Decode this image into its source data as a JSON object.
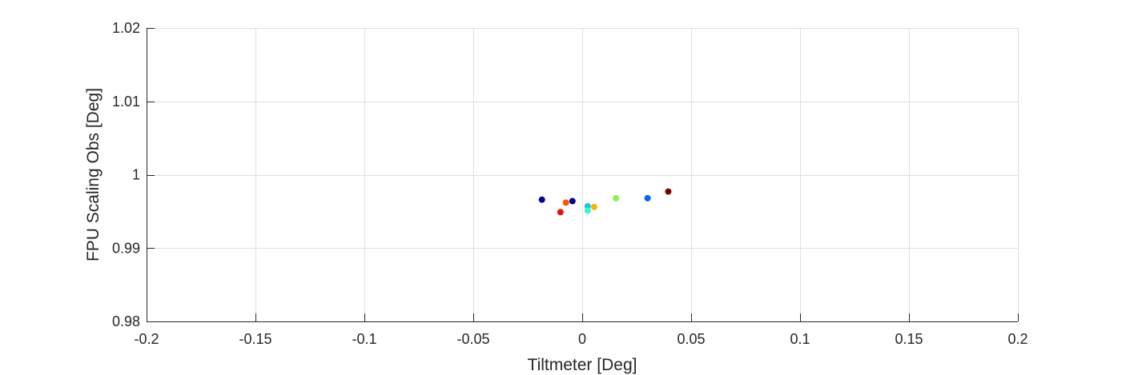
{
  "chart_data": {
    "type": "scatter",
    "xlabel": "Tiltmeter [Deg]",
    "ylabel": "FPU Scaling Obs [Deg]",
    "xlim": [
      -0.2,
      0.2
    ],
    "ylim": [
      0.98,
      1.02
    ],
    "xticks": [
      -0.2,
      -0.15,
      -0.1,
      -0.05,
      0,
      0.05,
      0.1,
      0.15,
      0.2
    ],
    "xtick_labels": [
      "-0.2",
      "-0.15",
      "-0.1",
      "-0.05",
      "0",
      "0.05",
      "0.1",
      "0.15",
      "0.2"
    ],
    "yticks": [
      0.98,
      0.99,
      1.0,
      1.01,
      1.02
    ],
    "ytick_labels": [
      "0.98",
      "0.99",
      "1",
      "1.01",
      "1.02"
    ],
    "grid": true,
    "points": [
      {
        "x": -0.0185,
        "y": 0.9966,
        "color": "#000096"
      },
      {
        "x": -0.01,
        "y": 0.9949,
        "color": "#e6140a"
      },
      {
        "x": -0.0075,
        "y": 0.9962,
        "color": "#f05a00"
      },
      {
        "x": -0.0045,
        "y": 0.9964,
        "color": "#00008c"
      },
      {
        "x": 0.0025,
        "y": 0.9957,
        "color": "#14c8e6"
      },
      {
        "x": 0.0025,
        "y": 0.9951,
        "color": "#46f0d2"
      },
      {
        "x": 0.0055,
        "y": 0.9956,
        "color": "#ffb400"
      },
      {
        "x": 0.0155,
        "y": 0.9968,
        "color": "#8cf050"
      },
      {
        "x": 0.03,
        "y": 0.9968,
        "color": "#0a64f0"
      },
      {
        "x": 0.0395,
        "y": 0.9977,
        "color": "#780000"
      }
    ]
  }
}
